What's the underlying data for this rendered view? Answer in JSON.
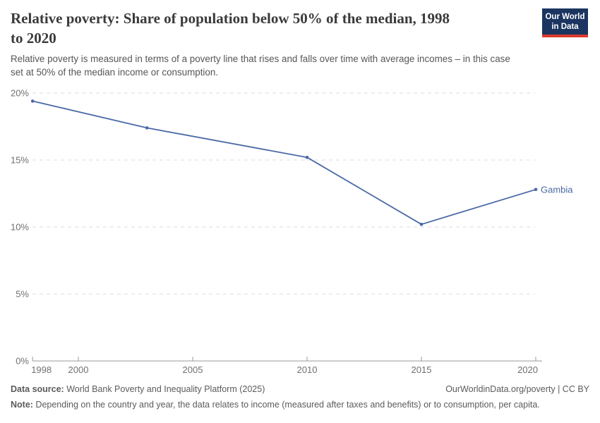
{
  "header": {
    "title_lines": [
      "Relative poverty: Share of population below 50% of the median, 1998",
      "to 2020"
    ],
    "subtitle_lines": [
      "Relative poverty is measured in terms of a poverty line that rises and falls over time with average incomes – in this case",
      "set at 50% of the median income or consumption."
    ],
    "logo": {
      "line1": "Our World",
      "line2": "in Data"
    }
  },
  "chart_data": {
    "type": "line",
    "title": "Relative poverty: Share of population below 50% of the median, 1998 to 2020",
    "x": [
      1998,
      2003,
      2010,
      2015,
      2020
    ],
    "series": [
      {
        "name": "Gambia",
        "color": "#4a69a5",
        "values": [
          19.4,
          17.4,
          15.2,
          10.2,
          12.8
        ]
      }
    ],
    "x_ticks": [
      1998,
      2000,
      2005,
      2010,
      2015,
      2020
    ],
    "y_ticks": [
      0,
      5,
      10,
      15,
      20
    ],
    "y_tick_suffix": "%",
    "xlim": [
      1998,
      2020
    ],
    "ylim": [
      0,
      20
    ],
    "grid": "horizontal-dashed",
    "legend": "end-of-line-label"
  },
  "footer": {
    "source_label": "Data source:",
    "source_text": " World Bank Poverty and Inequality Platform (2025)",
    "attribution": "OurWorldinData.org/poverty | CC BY",
    "note_label": "Note:",
    "note_text": " Depending on the country and year, the data relates to income (measured after taxes and benefits) or to consumption, per capita."
  },
  "colors": {
    "line": "#4a69a5",
    "grid": "#dcdcdc",
    "axis": "#9a9a9a",
    "tick_label": "#707070",
    "title": "#3a3a3a",
    "subtitle": "#565656",
    "footer": "#5b5b5b",
    "logo_bg": "#1b3560",
    "logo_bar": "#dc3a2d"
  }
}
